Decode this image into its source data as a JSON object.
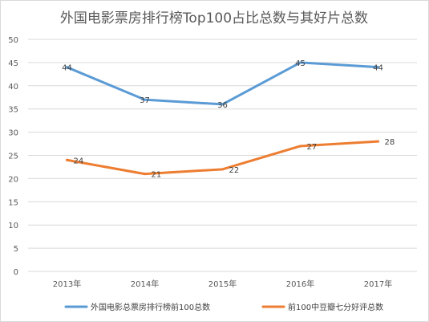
{
  "chart_data": {
    "type": "line",
    "title": "外国电影票房排行榜Top100占比总数与其好片总数",
    "xlabel": "",
    "ylabel": "",
    "categories": [
      "2013年",
      "2014年",
      "2015年",
      "2016年",
      "2017年"
    ],
    "ylim": [
      0,
      50
    ],
    "yticks": [
      "0",
      "5",
      "10",
      "15",
      "20",
      "25",
      "30",
      "35",
      "40",
      "45",
      "50"
    ],
    "grid": true,
    "legend": "bottom",
    "series": [
      {
        "name": "外国电影总票房排行榜前100总数",
        "color": "#5b9bd5",
        "values": [
          44,
          37,
          36,
          45,
          44
        ],
        "labels": [
          "44",
          "37",
          "36",
          "45",
          "44"
        ]
      },
      {
        "name": "前100中豆瓣七分好评总数",
        "color": "#ed7d31",
        "values": [
          24,
          21,
          22,
          27,
          28
        ],
        "labels": [
          "24",
          "21",
          "22",
          "27",
          "28"
        ]
      }
    ]
  }
}
